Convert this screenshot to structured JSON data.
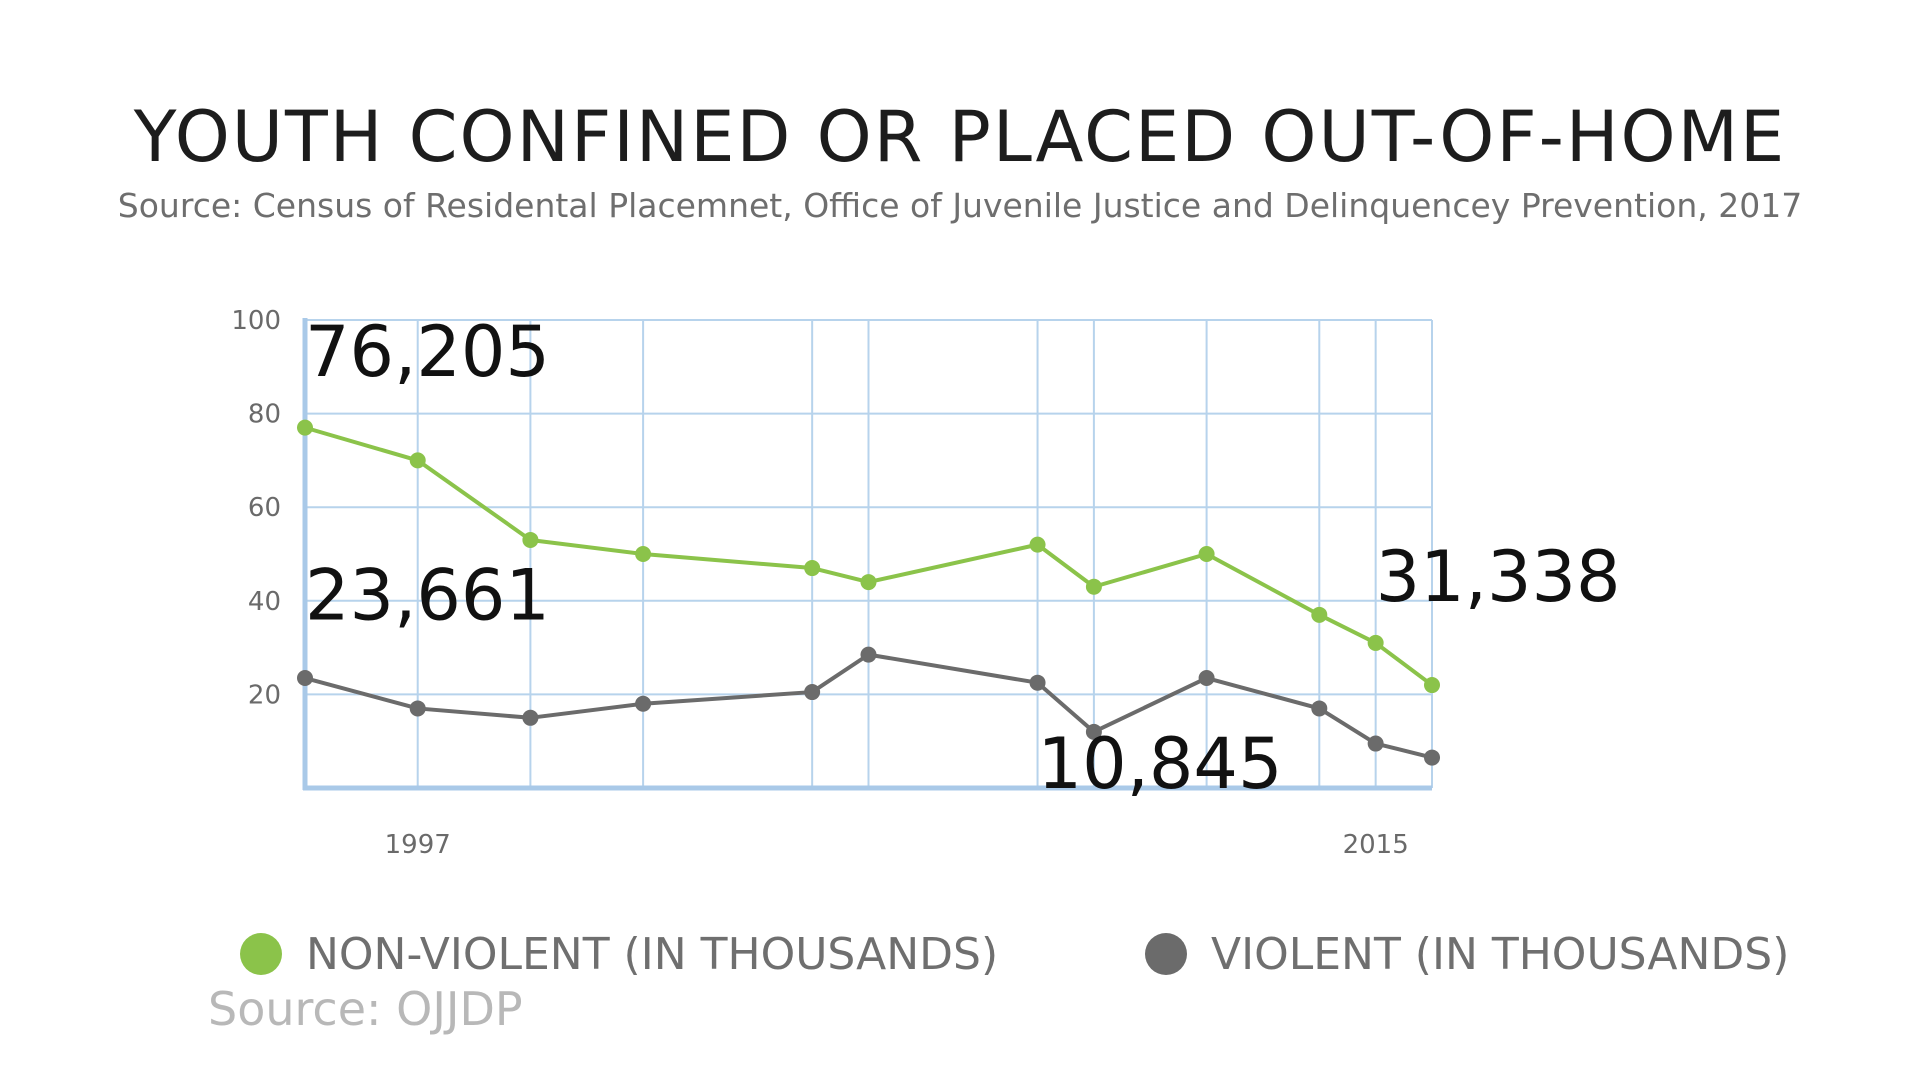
{
  "header": {
    "title": "YOUTH CONFINED OR PLACED OUT-OF-HOME",
    "subtitle": "Source: Census of Residental Placemnet, Office of Juvenile Justice and Delinquencey Prevention, 2017"
  },
  "footer": {
    "source_note": "Source: OJJDP"
  },
  "chart_data": {
    "type": "line",
    "x": [
      1997,
      1999,
      2001,
      2003,
      2006,
      2007,
      2010,
      2011,
      2013,
      2015,
      2016,
      2017
    ],
    "x_tick_labels": [
      {
        "x": 1999,
        "label": "1997"
      },
      {
        "x": 2016,
        "label": "2015"
      }
    ],
    "xlim": [
      1997,
      2017
    ],
    "ylim": [
      0,
      100
    ],
    "y_ticks": [
      20,
      40,
      60,
      80,
      100
    ],
    "grid": true,
    "legend_position": "bottom",
    "series": [
      {
        "name": "NON-VIOLENT (IN THOUSANDS)",
        "color": "#8bc34a",
        "values": [
          77,
          70,
          53,
          50,
          47,
          44,
          52,
          43,
          50,
          37,
          31,
          22
        ]
      },
      {
        "name": "VIOLENT (IN THOUSANDS)",
        "color": "#6b6b6b",
        "values": [
          23.5,
          17,
          15,
          18,
          20.5,
          28.5,
          22.5,
          12,
          23.5,
          17,
          9.5,
          6.5
        ]
      }
    ],
    "annotations": [
      {
        "text": "76,205",
        "x": 1997,
        "y": 88,
        "anchor": "start"
      },
      {
        "text": "23,661",
        "x": 1997,
        "y": 36,
        "anchor": "start"
      },
      {
        "text": "31,338",
        "x": 2016,
        "y": 40,
        "anchor": "start"
      },
      {
        "text": "10,845",
        "x": 2010,
        "y": 0,
        "anchor": "start"
      }
    ],
    "grid_color": "#b7d3ec",
    "axis_color": "#a9c9e8"
  }
}
